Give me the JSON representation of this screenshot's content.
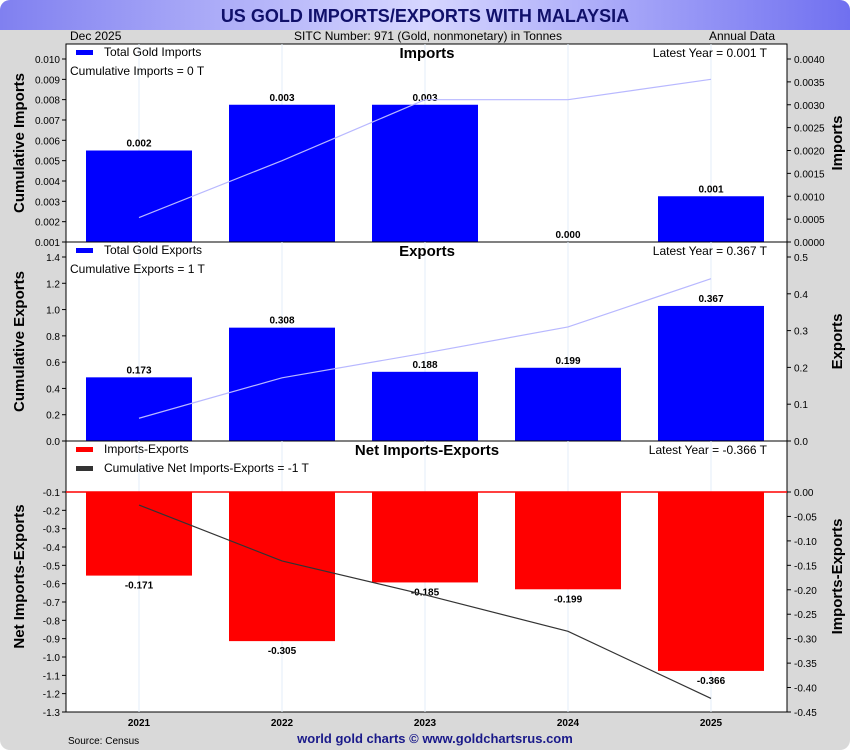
{
  "header": {
    "title": "US GOLD IMPORTS/EXPORTS WITH MALAYSIA",
    "date": "Dec  2025",
    "sitc": "SITC Number: 971 (Gold, nonmonetary) in Tonnes",
    "frequency": "Annual Data"
  },
  "footer": {
    "source": "Source: Census",
    "credit": "world gold charts © www.goldchartsrus.com"
  },
  "colors": {
    "imports": "#0000ff",
    "exports": "#0000ff",
    "net": "#ff0000",
    "cum_line": "#b8b8ff",
    "net_line": "#333333"
  },
  "chart_data": [
    {
      "type": "bar",
      "title": "Imports",
      "categories": [
        "2021",
        "2022",
        "2023",
        "2024",
        "2025"
      ],
      "values": [
        0.002,
        0.003,
        0.003,
        0.0,
        0.001
      ],
      "labels": [
        "0.002",
        "0.003",
        "0.003",
        "0.000",
        "0.001"
      ],
      "legend": "Total Gold Imports",
      "cumulative_label": "Cumulative Imports = 0 T",
      "latest": "Latest Year = 0.001 T",
      "ylabel_left": "Cumulative Imports",
      "ylabel_right": "Imports",
      "cumulative": [
        0.0022,
        0.005,
        0.008,
        0.008,
        0.009
      ],
      "ylim_left": [
        0.001,
        0.01
      ],
      "ylim_right": [
        0,
        0.004
      ],
      "ticks_left": [
        "0.010",
        "0.009",
        "0.008",
        "0.007",
        "0.006",
        "0.005",
        "0.004",
        "0.003",
        "0.002",
        "0.001"
      ],
      "ticks_right": [
        "0.0040",
        "0.0035",
        "0.0030",
        "0.0025",
        "0.0020",
        "0.0015",
        "0.0010",
        "0.0005",
        "0.0000"
      ]
    },
    {
      "type": "bar",
      "title": "Exports",
      "categories": [
        "2021",
        "2022",
        "2023",
        "2024",
        "2025"
      ],
      "values": [
        0.173,
        0.308,
        0.188,
        0.199,
        0.367
      ],
      "labels": [
        "0.173",
        "0.308",
        "0.188",
        "0.199",
        "0.367"
      ],
      "legend": "Total Gold Exports",
      "cumulative_label": "Cumulative Exports = 1 T",
      "latest": "Latest Year = 0.367 T",
      "ylabel_left": "Cumulative Exports",
      "ylabel_right": "Exports",
      "cumulative": [
        0.173,
        0.481,
        0.669,
        0.868,
        1.235
      ],
      "ylim_left": [
        0,
        1.4
      ],
      "ylim_right": [
        0,
        0.5
      ],
      "ticks_left": [
        "1.4",
        "1.2",
        "1.0",
        "0.8",
        "0.6",
        "0.4",
        "0.2",
        "0.0"
      ],
      "ticks_right": [
        "0.5",
        "0.4",
        "0.3",
        "0.2",
        "0.1",
        "0.0"
      ]
    },
    {
      "type": "bar",
      "title": "Net Imports-Exports",
      "categories": [
        "2021",
        "2022",
        "2023",
        "2024",
        "2025"
      ],
      "values": [
        -0.171,
        -0.305,
        -0.185,
        -0.199,
        -0.366
      ],
      "labels": [
        "-0.171",
        "-0.305",
        "-0.185",
        "-0.199",
        "-0.366"
      ],
      "legend": "Imports-Exports",
      "cumulative_label": "Cumulative Net Imports-Exports = -1 T",
      "latest": "Latest Year = -0.366 T",
      "ylabel_left": "Net Imports-Exports",
      "ylabel_right": "Imports-Exports",
      "cumulative": [
        -0.171,
        -0.476,
        -0.661,
        -0.86,
        -1.226
      ],
      "ylim_left": [
        -1.3,
        -0.1
      ],
      "ylim_right": [
        -0.45,
        0
      ],
      "ticks_left": [
        "-0.1",
        "-0.2",
        "-0.3",
        "-0.4",
        "-0.5",
        "-0.6",
        "-0.7",
        "-0.8",
        "-0.9",
        "-1.0",
        "-1.1",
        "-1.2",
        "-1.3"
      ],
      "ticks_right": [
        "0.00",
        "-0.05",
        "-0.10",
        "-0.15",
        "-0.20",
        "-0.25",
        "-0.30",
        "-0.35",
        "-0.40",
        "-0.45"
      ]
    }
  ]
}
